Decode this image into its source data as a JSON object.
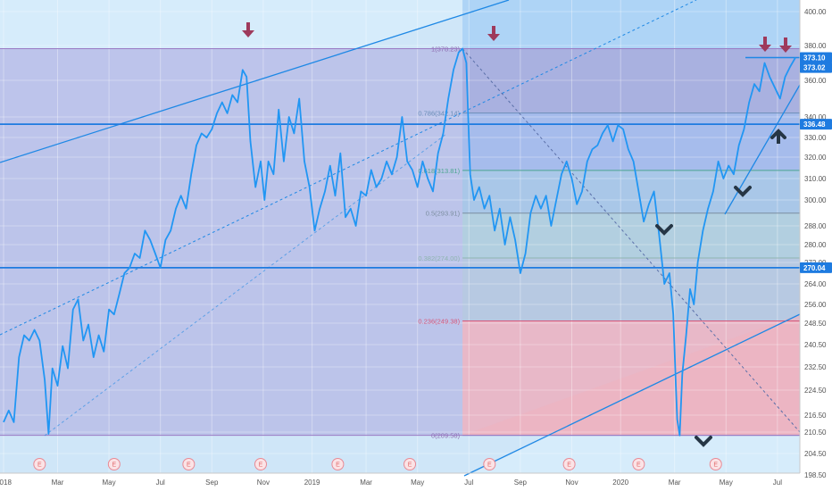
{
  "chart_data": {
    "type": "line",
    "title": "",
    "xlabel": "",
    "ylabel": "",
    "ylim": [
      196,
      408
    ],
    "x_ticks": [
      {
        "label": "2018",
        "t": 0.0
      },
      {
        "label": "Mar",
        "t": 2.1
      },
      {
        "label": "May",
        "t": 4.1
      },
      {
        "label": "Jul",
        "t": 6.1
      },
      {
        "label": "Sep",
        "t": 8.1
      },
      {
        "label": "Nov",
        "t": 10.1
      },
      {
        "label": "2019",
        "t": 12.0
      },
      {
        "label": "Mar",
        "t": 14.1
      },
      {
        "label": "May",
        "t": 16.1
      },
      {
        "label": "Jul",
        "t": 18.1
      },
      {
        "label": "Sep",
        "t": 20.1
      },
      {
        "label": "Nov",
        "t": 22.1
      },
      {
        "label": "2020",
        "t": 24.0
      },
      {
        "label": "Mar",
        "t": 26.1
      },
      {
        "label": "May",
        "t": 28.1
      },
      {
        "label": "Jul",
        "t": 30.1
      }
    ],
    "y_ticks": [
      "400.00",
      "380.00",
      "360.00",
      "340.00",
      "330.00",
      "320.00",
      "310.00",
      "300.00",
      "288.00",
      "280.00",
      "272.00",
      "264.00",
      "256.00",
      "248.50",
      "240.50",
      "232.50",
      "224.50",
      "216.50",
      "210.50",
      "204.50",
      "198.50"
    ],
    "price_badges": [
      {
        "label": "373.10",
        "value": 373.1
      },
      {
        "label": "373.02",
        "value": 373.02
      },
      {
        "label": "336.48",
        "value": 336.48
      },
      {
        "label": "270.04",
        "value": 270.04
      }
    ],
    "horizontal_lines": [
      336.48,
      270.04
    ],
    "fib_levels": [
      {
        "label": "1(378.23)",
        "value": 378.23
      },
      {
        "label": "0.786(342.14)",
        "value": 342.14
      },
      {
        "label": "0.618(313.81)",
        "value": 313.81
      },
      {
        "label": "0.5(293.91)",
        "value": 293.91
      },
      {
        "label": "0.382(274.00)",
        "value": 274.0
      },
      {
        "label": "0.236(249.38)",
        "value": 249.38
      },
      {
        "label": "0(209.58)",
        "value": 209.58
      }
    ],
    "earnings_marker_label": "E",
    "earnings_markers_t": [
      1.4,
      4.3,
      7.2,
      10.0,
      13.0,
      15.8,
      18.9,
      22.0,
      24.7,
      27.7
    ],
    "series": [
      {
        "color": "#2196f3",
        "points": [
          [
            0.0,
            214
          ],
          [
            0.2,
            218
          ],
          [
            0.4,
            214
          ],
          [
            0.6,
            236
          ],
          [
            0.8,
            244
          ],
          [
            1.0,
            242
          ],
          [
            1.2,
            246
          ],
          [
            1.4,
            242
          ],
          [
            1.6,
            228
          ],
          [
            1.75,
            210
          ],
          [
            1.9,
            232
          ],
          [
            2.1,
            226
          ],
          [
            2.3,
            240
          ],
          [
            2.5,
            232
          ],
          [
            2.7,
            254
          ],
          [
            2.9,
            258
          ],
          [
            3.1,
            242
          ],
          [
            3.3,
            248
          ],
          [
            3.5,
            236
          ],
          [
            3.7,
            244
          ],
          [
            3.9,
            238
          ],
          [
            4.1,
            254
          ],
          [
            4.3,
            252
          ],
          [
            4.5,
            260
          ],
          [
            4.7,
            268
          ],
          [
            4.9,
            270
          ],
          [
            5.1,
            276
          ],
          [
            5.3,
            274
          ],
          [
            5.5,
            286
          ],
          [
            5.7,
            282
          ],
          [
            5.9,
            276
          ],
          [
            6.1,
            270
          ],
          [
            6.3,
            282
          ],
          [
            6.5,
            286
          ],
          [
            6.7,
            296
          ],
          [
            6.9,
            302
          ],
          [
            7.1,
            296
          ],
          [
            7.3,
            312
          ],
          [
            7.5,
            326
          ],
          [
            7.7,
            332
          ],
          [
            7.9,
            330
          ],
          [
            8.1,
            334
          ],
          [
            8.3,
            342
          ],
          [
            8.5,
            348
          ],
          [
            8.7,
            342
          ],
          [
            8.9,
            352
          ],
          [
            9.1,
            348
          ],
          [
            9.3,
            366
          ],
          [
            9.45,
            362
          ],
          [
            9.6,
            328
          ],
          [
            9.8,
            306
          ],
          [
            10.0,
            318
          ],
          [
            10.15,
            300
          ],
          [
            10.3,
            318
          ],
          [
            10.5,
            312
          ],
          [
            10.7,
            344
          ],
          [
            10.9,
            318
          ],
          [
            11.1,
            340
          ],
          [
            11.3,
            332
          ],
          [
            11.5,
            350
          ],
          [
            11.7,
            318
          ],
          [
            11.9,
            306
          ],
          [
            12.1,
            286
          ],
          [
            12.3,
            296
          ],
          [
            12.5,
            304
          ],
          [
            12.7,
            316
          ],
          [
            12.9,
            302
          ],
          [
            13.1,
            322
          ],
          [
            13.3,
            292
          ],
          [
            13.5,
            296
          ],
          [
            13.7,
            288
          ],
          [
            13.9,
            304
          ],
          [
            14.1,
            302
          ],
          [
            14.3,
            314
          ],
          [
            14.5,
            306
          ],
          [
            14.7,
            310
          ],
          [
            14.9,
            318
          ],
          [
            15.1,
            312
          ],
          [
            15.3,
            320
          ],
          [
            15.5,
            340
          ],
          [
            15.7,
            318
          ],
          [
            15.9,
            314
          ],
          [
            16.1,
            306
          ],
          [
            16.3,
            318
          ],
          [
            16.5,
            310
          ],
          [
            16.7,
            304
          ],
          [
            16.9,
            322
          ],
          [
            17.1,
            332
          ],
          [
            17.3,
            350
          ],
          [
            17.5,
            366
          ],
          [
            17.7,
            376
          ],
          [
            17.85,
            378.23
          ],
          [
            18.0,
            370
          ],
          [
            18.15,
            312
          ],
          [
            18.3,
            300
          ],
          [
            18.5,
            306
          ],
          [
            18.7,
            296
          ],
          [
            18.9,
            302
          ],
          [
            19.1,
            286
          ],
          [
            19.3,
            296
          ],
          [
            19.5,
            280
          ],
          [
            19.7,
            292
          ],
          [
            19.9,
            282
          ],
          [
            20.1,
            268
          ],
          [
            20.3,
            276
          ],
          [
            20.5,
            294
          ],
          [
            20.7,
            302
          ],
          [
            20.9,
            296
          ],
          [
            21.1,
            302
          ],
          [
            21.3,
            288
          ],
          [
            21.5,
            300
          ],
          [
            21.7,
            312
          ],
          [
            21.9,
            318
          ],
          [
            22.1,
            310
          ],
          [
            22.3,
            298
          ],
          [
            22.5,
            304
          ],
          [
            22.7,
            318
          ],
          [
            22.9,
            324
          ],
          [
            23.1,
            326
          ],
          [
            23.3,
            332
          ],
          [
            23.5,
            336
          ],
          [
            23.7,
            328
          ],
          [
            23.9,
            336
          ],
          [
            24.1,
            334
          ],
          [
            24.3,
            324
          ],
          [
            24.5,
            318
          ],
          [
            24.7,
            304
          ],
          [
            24.9,
            290
          ],
          [
            25.1,
            298
          ],
          [
            25.3,
            304
          ],
          [
            25.5,
            284
          ],
          [
            25.7,
            264
          ],
          [
            25.9,
            268
          ],
          [
            26.05,
            252
          ],
          [
            26.15,
            226
          ],
          [
            26.2,
            215
          ],
          [
            26.3,
            209.58
          ],
          [
            26.4,
            230
          ],
          [
            26.55,
            244
          ],
          [
            26.7,
            262
          ],
          [
            26.85,
            256
          ],
          [
            27.0,
            272
          ],
          [
            27.2,
            286
          ],
          [
            27.4,
            296
          ],
          [
            27.6,
            304
          ],
          [
            27.8,
            318
          ],
          [
            28.0,
            310
          ],
          [
            28.2,
            316
          ],
          [
            28.4,
            312
          ],
          [
            28.6,
            326
          ],
          [
            28.8,
            334
          ],
          [
            29.0,
            348
          ],
          [
            29.2,
            358
          ],
          [
            29.4,
            354
          ],
          [
            29.6,
            370
          ],
          [
            29.8,
            362
          ],
          [
            30.0,
            356
          ],
          [
            30.2,
            350
          ],
          [
            30.4,
            362
          ],
          [
            30.6,
            368
          ],
          [
            30.8,
            373.02
          ]
        ]
      }
    ]
  }
}
